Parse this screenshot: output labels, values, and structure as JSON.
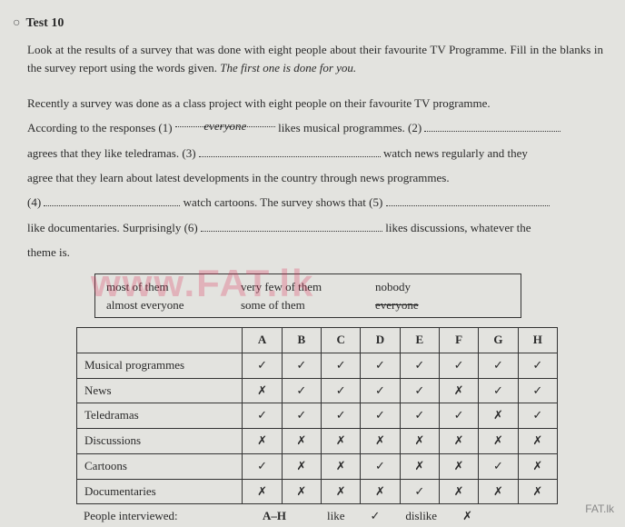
{
  "header": {
    "bullet": "○",
    "title": "Test 10"
  },
  "instructions": {
    "line1": "Look at the results of a survey that was done with eight people about their favourite TV Programme. Fill in the blanks in the survey report using the words given. ",
    "italic": "The first one is done for you."
  },
  "passage": {
    "intro": "Recently a survey was done as a class project with eight people on their favourite TV programme.",
    "s1a": "According to the responses (1) ",
    "filled1": "everyone",
    "s1b": " likes musical programmes. (2) ",
    "s2": "agrees that they like teledramas. (3) ",
    "s2b": " watch news regularly and they",
    "s3": "agree that they learn about latest developments in the country through news programmes.",
    "s4a": "(4) ",
    "s4b": " watch cartoons. The survey shows that (5) ",
    "s5": "like documentaries. Surprisingly (6) ",
    "s5b": " likes discussions, whatever the",
    "s6": "theme is."
  },
  "wordbox": {
    "w1": "most of them",
    "w2": "very few of them",
    "w3": "nobody",
    "w4": "almost everyone",
    "w5": "some of them",
    "w6": "everyone"
  },
  "table": {
    "cols": [
      "A",
      "B",
      "C",
      "D",
      "E",
      "F",
      "G",
      "H"
    ],
    "rows": [
      {
        "label": "Musical programmes",
        "cells": [
          "✓",
          "✓",
          "✓",
          "✓",
          "✓",
          "✓",
          "✓",
          "✓"
        ]
      },
      {
        "label": "News",
        "cells": [
          "✗",
          "✓",
          "✓",
          "✓",
          "✓",
          "✗",
          "✓",
          "✓"
        ]
      },
      {
        "label": "Teledramas",
        "cells": [
          "✓",
          "✓",
          "✓",
          "✓",
          "✓",
          "✓",
          "✗",
          "✓"
        ]
      },
      {
        "label": "Discussions",
        "cells": [
          "✗",
          "✗",
          "✗",
          "✗",
          "✗",
          "✗",
          "✗",
          "✗"
        ]
      },
      {
        "label": "Cartoons",
        "cells": [
          "✓",
          "✗",
          "✗",
          "✓",
          "✗",
          "✗",
          "✓",
          "✗"
        ]
      },
      {
        "label": "Documentaries",
        "cells": [
          "✗",
          "✗",
          "✗",
          "✗",
          "✓",
          "✗",
          "✗",
          "✗"
        ]
      }
    ]
  },
  "legend": {
    "label": "People interviewed:",
    "range": "A–H",
    "like": "like",
    "likeSym": "✓",
    "dislike": "dislike",
    "dislikeSym": "✗"
  },
  "watermark": "www.FAT.lk",
  "footer": "FAT.lk",
  "colors": {
    "bg": "#e3e3df",
    "text": "#2a2a2a",
    "watermark": "rgba(220,50,90,0.28)"
  }
}
